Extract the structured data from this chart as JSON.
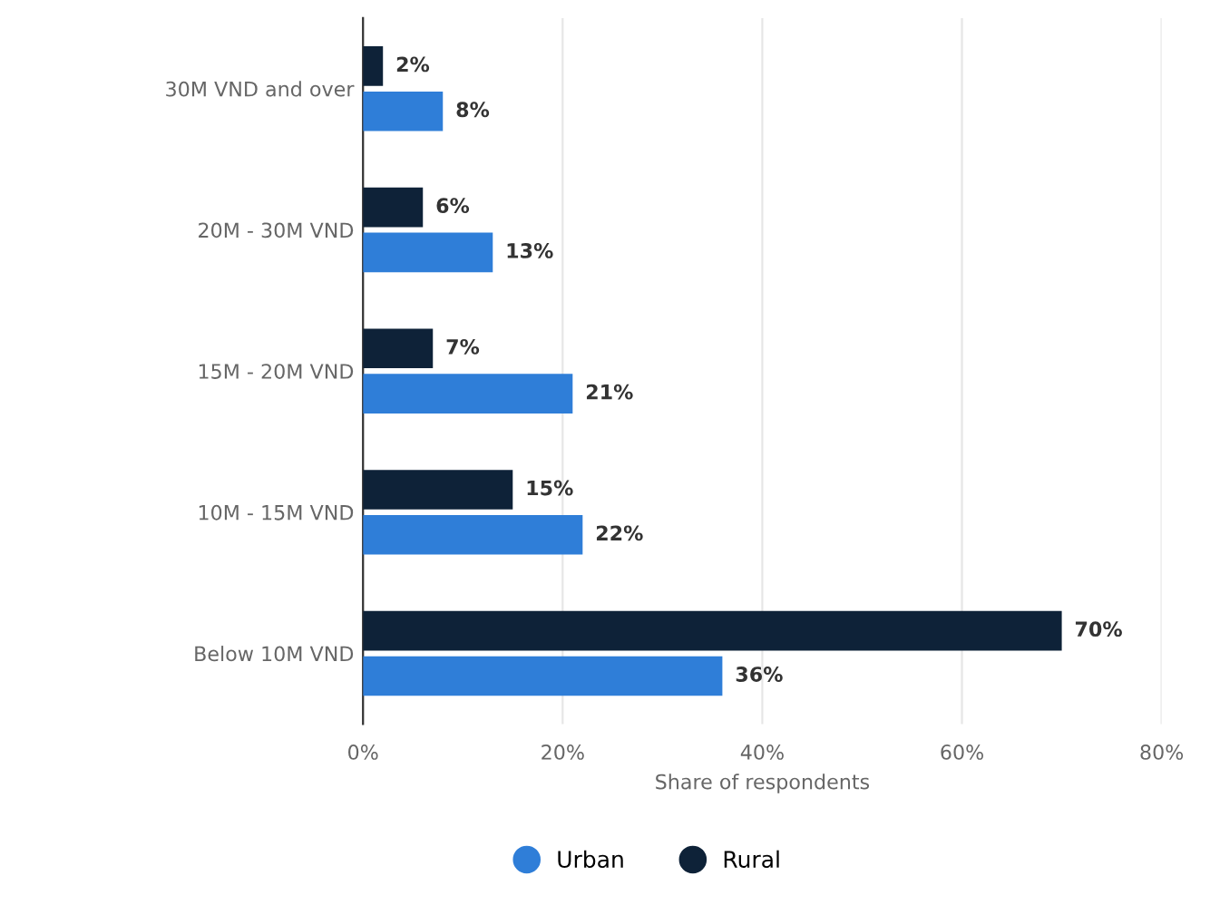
{
  "chart_data": {
    "type": "bar",
    "orientation": "horizontal",
    "xlabel": "Share of respondents",
    "categories": [
      "30M VND and over",
      "20M - 30M VND",
      "15M - 20M VND",
      "10M - 15M VND",
      "Below 10M VND"
    ],
    "series": [
      {
        "name": "Urban",
        "color": "#2f7ed8",
        "values": [
          8,
          13,
          21,
          22,
          36
        ],
        "value_labels": [
          "8%",
          "13%",
          "21%",
          "22%",
          "36%"
        ]
      },
      {
        "name": "Rural",
        "color": "#0e2238",
        "values": [
          2,
          6,
          7,
          15,
          70
        ],
        "value_labels": [
          "2%",
          "6%",
          "7%",
          "15%",
          "70%"
        ]
      }
    ],
    "xlim": [
      0,
      80
    ],
    "xticks": [
      {
        "value": 0,
        "label": "0%"
      },
      {
        "value": 20,
        "label": "20%"
      },
      {
        "value": 40,
        "label": "40%"
      },
      {
        "value": 60,
        "label": "60%"
      },
      {
        "value": 80,
        "label": "80%"
      }
    ],
    "grid": "x",
    "legend": "bottom"
  }
}
